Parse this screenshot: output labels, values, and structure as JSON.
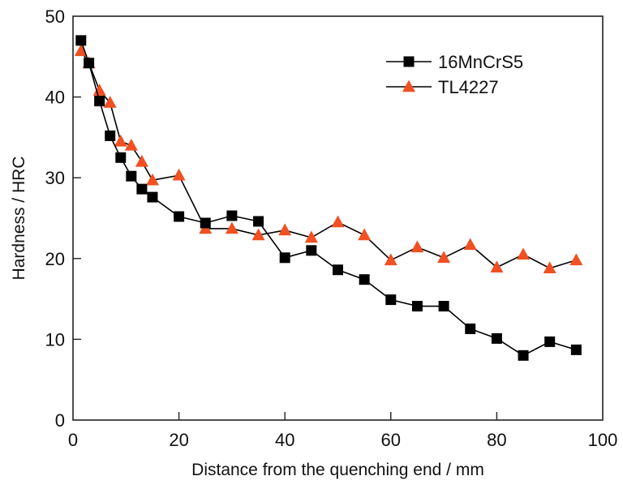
{
  "chart_data": {
    "type": "line",
    "title": "",
    "xlabel": "Distance from the quenching end / mm",
    "ylabel": "Hardness / HRC",
    "xlim": [
      0,
      100
    ],
    "ylim": [
      0,
      50
    ],
    "xticks": [
      0,
      20,
      40,
      60,
      80,
      100
    ],
    "yticks": [
      0,
      10,
      20,
      30,
      40,
      50
    ],
    "grid": false,
    "legend_position": "top-right",
    "series": [
      {
        "name": "16MnCrS5",
        "marker": "square",
        "color": "#000000",
        "line_color": "#000000",
        "x": [
          1.5,
          3,
          5,
          7,
          9,
          11,
          13,
          15,
          20,
          25,
          30,
          35,
          40,
          45,
          50,
          55,
          60,
          65,
          70,
          75,
          80,
          85,
          90,
          95
        ],
        "y": [
          47.0,
          44.2,
          39.5,
          35.2,
          32.5,
          30.2,
          28.6,
          27.6,
          25.2,
          24.4,
          25.3,
          24.6,
          20.1,
          21.0,
          18.6,
          17.4,
          14.9,
          14.1,
          14.1,
          11.3,
          10.1,
          8.0,
          9.7,
          8.7
        ]
      },
      {
        "name": "TL4227",
        "marker": "triangle",
        "color": "#f05022",
        "line_color": "#000000",
        "x": [
          1.5,
          3,
          5,
          7,
          9,
          11,
          13,
          15,
          20,
          25,
          30,
          35,
          40,
          45,
          50,
          55,
          60,
          65,
          70,
          75,
          80,
          85,
          90,
          95
        ],
        "y": [
          45.7,
          44.2,
          40.8,
          39.3,
          34.5,
          34.0,
          32.0,
          29.7,
          30.3,
          23.7,
          23.7,
          22.9,
          23.5,
          22.6,
          24.5,
          22.9,
          19.8,
          21.4,
          20.1,
          21.7,
          18.9,
          20.5,
          18.8,
          19.8
        ]
      }
    ]
  }
}
